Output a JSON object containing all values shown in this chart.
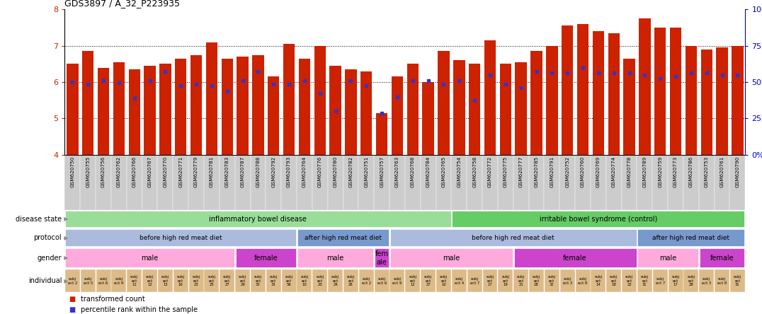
{
  "title": "GDS3897 / A_32_P223935",
  "ylim": [
    4,
    8
  ],
  "y_left_ticks": [
    4,
    5,
    6,
    7,
    8
  ],
  "y_right_ticks": [
    0,
    25,
    50,
    75,
    100
  ],
  "y_right_tick_positions": [
    4,
    5,
    6,
    7,
    8
  ],
  "dotted_lines": [
    5,
    6,
    7
  ],
  "samples": [
    "GSM620750",
    "GSM620755",
    "GSM620756",
    "GSM620762",
    "GSM620766",
    "GSM620767",
    "GSM620770",
    "GSM620771",
    "GSM620779",
    "GSM620781",
    "GSM620783",
    "GSM620787",
    "GSM620788",
    "GSM620792",
    "GSM620793",
    "GSM620764",
    "GSM620776",
    "GSM620780",
    "GSM620782",
    "GSM620751",
    "GSM620757",
    "GSM620763",
    "GSM620768",
    "GSM620784",
    "GSM620765",
    "GSM620754",
    "GSM620758",
    "GSM620772",
    "GSM620775",
    "GSM620777",
    "GSM620785",
    "GSM620791",
    "GSM620752",
    "GSM620760",
    "GSM620769",
    "GSM620774",
    "GSM620778",
    "GSM620789",
    "GSM620759",
    "GSM620773",
    "GSM620786",
    "GSM620753",
    "GSM620761",
    "GSM620790"
  ],
  "bar_heights": [
    6.5,
    6.85,
    6.4,
    6.55,
    6.35,
    6.45,
    6.5,
    6.65,
    6.75,
    7.1,
    6.65,
    6.7,
    6.75,
    6.15,
    7.05,
    6.65,
    7.0,
    6.45,
    6.35,
    6.3,
    5.15,
    6.15,
    6.5,
    6.0,
    6.85,
    6.6,
    6.5,
    7.15,
    6.5,
    6.55,
    6.85,
    7.0,
    7.55,
    7.6,
    7.4,
    7.35,
    6.65,
    7.75,
    7.5,
    7.5,
    7.0,
    6.9,
    6.95,
    7.0
  ],
  "percentile_markers": [
    6.0,
    5.95,
    6.05,
    5.98,
    5.55,
    6.05,
    6.3,
    5.9,
    5.95,
    5.9,
    5.75,
    6.05,
    6.3,
    5.95,
    5.95,
    6.05,
    5.7,
    5.2,
    6.05,
    5.9,
    5.15,
    5.6,
    6.05,
    6.05,
    5.95,
    6.05,
    5.5,
    6.2,
    5.95,
    5.85,
    6.3,
    6.25,
    6.25,
    6.4,
    6.25,
    6.25,
    6.25,
    6.2,
    6.1,
    6.15,
    6.25,
    6.25,
    6.2,
    6.2
  ],
  "bar_color": "#cc2200",
  "marker_color": "#3333cc",
  "bg_color": "#ffffff",
  "axis_label_color": "#cc2200",
  "right_axis_color": "#0000cc",
  "disease_boundaries": [
    {
      "label": "inflammatory bowel disease",
      "start": 0,
      "end": 25,
      "color": "#99dd99"
    },
    {
      "label": "irritable bowel syndrome (control)",
      "start": 25,
      "end": 44,
      "color": "#66cc66"
    }
  ],
  "protocol_sections": [
    {
      "label": "before high red meat diet",
      "start": 0,
      "end": 15,
      "color": "#aabbdd"
    },
    {
      "label": "after high red meat diet",
      "start": 15,
      "end": 21,
      "color": "#7799cc"
    },
    {
      "label": "before high red meat diet",
      "start": 21,
      "end": 37,
      "color": "#aabbdd"
    },
    {
      "label": "after high red meat diet",
      "start": 37,
      "end": 44,
      "color": "#7799cc"
    }
  ],
  "gender_sections": [
    {
      "label": "male",
      "start": 0,
      "end": 11,
      "color": "#ffaadd"
    },
    {
      "label": "female",
      "start": 11,
      "end": 15,
      "color": "#cc44cc"
    },
    {
      "label": "male",
      "start": 15,
      "end": 20,
      "color": "#ffaadd"
    },
    {
      "label": "fem\nale",
      "start": 20,
      "end": 21,
      "color": "#cc44cc"
    },
    {
      "label": "male",
      "start": 21,
      "end": 29,
      "color": "#ffaadd"
    },
    {
      "label": "female",
      "start": 29,
      "end": 37,
      "color": "#cc44cc"
    },
    {
      "label": "male",
      "start": 37,
      "end": 41,
      "color": "#ffaadd"
    },
    {
      "label": "female",
      "start": 41,
      "end": 44,
      "color": "#cc44cc"
    }
  ],
  "individual_labels": [
    "subj\nect 2",
    "subj\nect 5",
    "subj\nect 6",
    "subj\nect 9",
    "subj\nect\n11",
    "subj\nect\n12",
    "subj\nect\n15",
    "subj\nect\n16",
    "subj\nect\n23",
    "subj\nect\n25",
    "subj\nect\n27",
    "subj\nect\n29",
    "subj\nect\n30",
    "subj\nect\n33",
    "subj\nect\n56",
    "subj\nect\n10",
    "subj\nect\n20",
    "subj\nect\n24",
    "subj\nect\n26",
    "subj\nect 2",
    "subj\nect 6",
    "subj\nect 9",
    "subj\nect\n12",
    "subj\nect\n27",
    "subj\nect\n10",
    "subj\nect 4",
    "subj\nect 7",
    "subj\nect\n17",
    "subj\nect\n19",
    "subj\nect\n21",
    "subj\nect\n28",
    "subj\nect\n32",
    "subj\nect 3",
    "subj\nect 8",
    "subj\nect\n14",
    "subj\nect\n18",
    "subj\nect\n22",
    "subj\nect\n31",
    "subj\nect 7",
    "subj\nect\n17",
    "subj\nect\n28",
    "subj\nect 3",
    "subj\nect 8",
    "subj\nect\n31"
  ],
  "row_labels": [
    "disease state",
    "protocol",
    "gender",
    "individual"
  ],
  "legend_items": [
    {
      "color": "#cc2200",
      "label": "transformed count"
    },
    {
      "color": "#3333cc",
      "label": "percentile rank within the sample"
    }
  ],
  "xtick_bg_color": "#cccccc",
  "individual_color": "#ddbb88"
}
